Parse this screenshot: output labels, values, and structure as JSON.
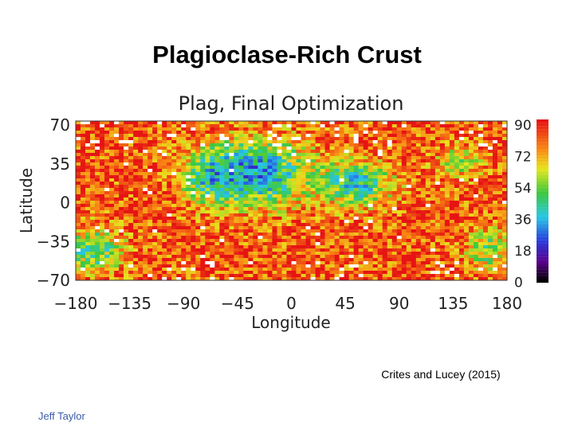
{
  "slide": {
    "title": "Plagioclase-Rich Crust",
    "credit": "Crites and Lucey (2015)",
    "author": "Jeff Taylor"
  },
  "figure": {
    "title": "Plag, Final Optimization",
    "x_label": "Longitude",
    "y_label": "Latitude",
    "x_ticks": [
      "−180",
      "−135",
      "−90",
      "−45",
      "0",
      "45",
      "90",
      "135",
      "180"
    ],
    "y_ticks": [
      "70",
      "35",
      "0",
      "−35",
      "−70"
    ],
    "colorbar_ticks": [
      "90",
      "72",
      "54",
      "36",
      "18",
      "0"
    ]
  }
}
